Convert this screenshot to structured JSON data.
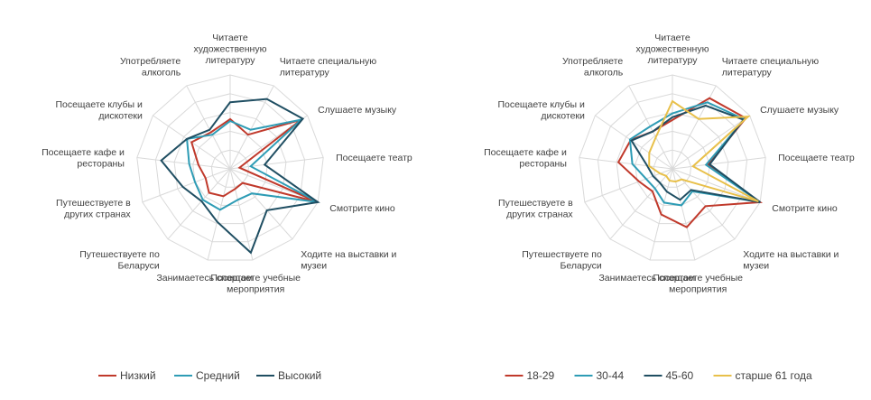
{
  "chart_data": [
    {
      "type": "radar",
      "title": "",
      "axes": [
        "Читаете художественную литературу",
        "Читаете специальную литературу",
        "Слушаете музыку",
        "Посещаете театр",
        "Смотрите кино",
        "Ходите на выставки и музеи",
        "Посещаете учебные мероприятия",
        "Занимаетесь спортом",
        "Путешествуете по Беларуси",
        "Путешествуете в других странах",
        "Посещаете кафе и рестораны",
        "Посещаете клубы и дискотеки",
        "Употребляете алкоголь"
      ],
      "axis_label_lines": [
        [
          "Читаете",
          "художественную",
          "литературу"
        ],
        [
          "Читаете специальную",
          "литературу"
        ],
        [
          "Слушаете музыку"
        ],
        [
          "Посещаете театр"
        ],
        [
          "Смотрите кино"
        ],
        [
          "Ходите на выставки и",
          "музеи"
        ],
        [
          "Посещаете учебные",
          "мероприятия"
        ],
        [
          "Занимаетесь спортом"
        ],
        [
          "Путешествуете по",
          "Беларуси"
        ],
        [
          "Путешествуете в",
          "других странах"
        ],
        [
          "Посещаете кафе и",
          "рестораны"
        ],
        [
          "Посещаете клубы и",
          "дискотеки"
        ],
        [
          "Употребляете",
          "алкоголь"
        ]
      ],
      "rmax": 100,
      "grid_levels": 5,
      "series": [
        {
          "name": "Низкий",
          "color": "#C0392B",
          "values": [
            53,
            41,
            92,
            10,
            100,
            20,
            22,
            30,
            34,
            28,
            34,
            50,
            44
          ]
        },
        {
          "name": "Средний",
          "color": "#2E9CB5",
          "values": [
            51,
            47,
            92,
            22,
            100,
            35,
            34,
            45,
            44,
            40,
            44,
            56,
            41
          ]
        },
        {
          "name": "Высокий",
          "color": "#1F4E62",
          "values": [
            71,
            84,
            94,
            37,
            100,
            59,
            92,
            58,
            46,
            54,
            74,
            56,
            47
          ]
        }
      ],
      "legend_position": "bottom"
    },
    {
      "type": "radar",
      "title": "",
      "axes": [
        "Читаете художественную литературу",
        "Читаете специальную литературу",
        "Слушаете музыку",
        "Посещаете театр",
        "Смотрите кино",
        "Ходите на выставки и музеи",
        "Посещаете учебные мероприятия",
        "Занимаетесь спортом",
        "Путешествуете по Беларуси",
        "Путешествуете в других странах",
        "Посещаете кафе и рестораны",
        "Посещаете клубы и дискотеки",
        "Употребляете алкоголь"
      ],
      "axis_label_lines": [
        [
          "Читаете",
          "художественную",
          "литературу"
        ],
        [
          "Читаете специальную",
          "литературу"
        ],
        [
          "Слушаете музыку"
        ],
        [
          "Посещаете театр"
        ],
        [
          "Смотрите кино"
        ],
        [
          "Ходите на выставки и",
          "музеи"
        ],
        [
          "Посещаете учебные",
          "мероприятия"
        ],
        [
          "Занимаетесь спортом"
        ],
        [
          "Путешествуете по",
          "Беларуси"
        ],
        [
          "Путешествуете в",
          "других странах"
        ],
        [
          "Посещаете кафе и",
          "рестораны"
        ],
        [
          "Посещаете клубы и",
          "дискотеки"
        ],
        [
          "Употребляете",
          "алкоголь"
        ]
      ],
      "rmax": 100,
      "grid_levels": 5,
      "series": [
        {
          "name": "18-29",
          "color": "#C0392B",
          "values": [
            52,
            85,
            95,
            38,
            100,
            53,
            64,
            50,
            32,
            38,
            58,
            54,
            45
          ]
        },
        {
          "name": "30-44",
          "color": "#2E9CB5",
          "values": [
            59,
            80,
            93,
            36,
            100,
            32,
            40,
            37,
            28,
            30,
            43,
            55,
            51
          ]
        },
        {
          "name": "45-60",
          "color": "#1F4E62",
          "values": [
            55,
            76,
            92,
            40,
            100,
            30,
            34,
            25,
            20,
            22,
            27,
            53,
            45
          ]
        },
        {
          "name": "старше 61 года",
          "color": "#E8C04A",
          "values": [
            72,
            60,
            98,
            22,
            98,
            15,
            14,
            13,
            10,
            14,
            25,
            30,
            38
          ]
        }
      ],
      "legend_position": "bottom"
    }
  ]
}
